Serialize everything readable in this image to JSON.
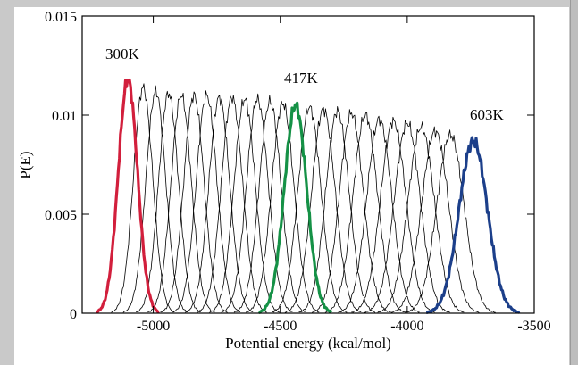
{
  "chart_data": {
    "type": "line",
    "title": "",
    "xlabel": "Potential energy (kcal/mol)",
    "ylabel": "P(E)",
    "xlim": [
      -5280,
      -3500
    ],
    "ylim": [
      0,
      0.015
    ],
    "x_ticks": [
      -5000,
      -4500,
      -4000,
      -3500
    ],
    "x_tick_labels": [
      "-5000",
      "-4500",
      "-4000",
      "-3500"
    ],
    "y_ticks": [
      0,
      0.005,
      0.01,
      0.015
    ],
    "y_tick_labels": [
      "0",
      "0.005",
      "0.01",
      "0.015"
    ],
    "grid": false,
    "distribution_shape": "approximately gaussian histograms of potential energy at each replica temperature",
    "series": [
      {
        "name": "300K",
        "color": "#d21f3c",
        "highlight": true,
        "center": -5100,
        "peak": 0.0118,
        "width": 38
      },
      {
        "center": -5040,
        "peak": 0.0114,
        "width": 38
      },
      {
        "center": -4990,
        "peak": 0.0112,
        "width": 39
      },
      {
        "center": -4940,
        "peak": 0.0111,
        "width": 39
      },
      {
        "center": -4890,
        "peak": 0.011,
        "width": 40
      },
      {
        "center": -4840,
        "peak": 0.011,
        "width": 40
      },
      {
        "center": -4790,
        "peak": 0.011,
        "width": 41
      },
      {
        "center": -4740,
        "peak": 0.0109,
        "width": 41
      },
      {
        "center": -4690,
        "peak": 0.0109,
        "width": 42
      },
      {
        "center": -4640,
        "peak": 0.0108,
        "width": 42
      },
      {
        "center": -4590,
        "peak": 0.0108,
        "width": 43
      },
      {
        "center": -4540,
        "peak": 0.0107,
        "width": 43
      },
      {
        "center": -4490,
        "peak": 0.0106,
        "width": 44
      },
      {
        "name": "417K",
        "color": "#159146",
        "highlight": true,
        "center": -4440,
        "peak": 0.0105,
        "width": 44
      },
      {
        "center": -4385,
        "peak": 0.0104,
        "width": 45
      },
      {
        "center": -4330,
        "peak": 0.0103,
        "width": 46
      },
      {
        "center": -4275,
        "peak": 0.0102,
        "width": 46
      },
      {
        "center": -4220,
        "peak": 0.0101,
        "width": 47
      },
      {
        "center": -4165,
        "peak": 0.01,
        "width": 48
      },
      {
        "center": -4110,
        "peak": 0.0098,
        "width": 49
      },
      {
        "center": -4055,
        "peak": 0.0097,
        "width": 50
      },
      {
        "center": -4000,
        "peak": 0.0096,
        "width": 51
      },
      {
        "center": -3945,
        "peak": 0.0094,
        "width": 52
      },
      {
        "center": -3890,
        "peak": 0.0092,
        "width": 53
      },
      {
        "center": -3830,
        "peak": 0.009,
        "width": 54
      },
      {
        "name": "603K",
        "color": "#1c3f8a",
        "highlight": true,
        "center": -3740,
        "peak": 0.0087,
        "width": 56
      }
    ],
    "labels": {
      "s300": "300K",
      "s417": "417K",
      "s603": "603K"
    }
  }
}
